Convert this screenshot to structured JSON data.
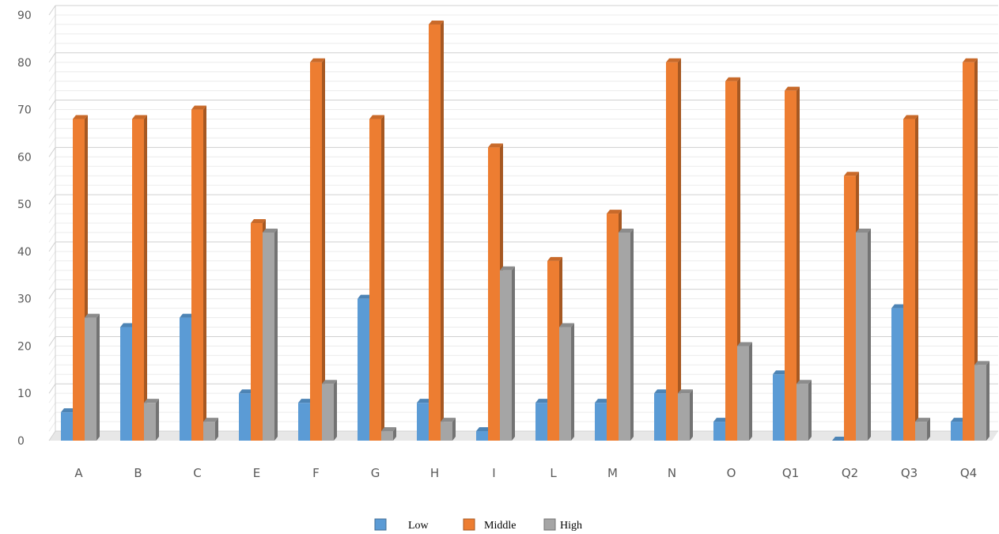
{
  "chart_data": {
    "type": "bar",
    "title": "",
    "xlabel": "",
    "ylabel": "",
    "ylim": [
      0,
      90
    ],
    "yticks": [
      0,
      10,
      20,
      30,
      40,
      50,
      60,
      70,
      80,
      90
    ],
    "grid": true,
    "legend_position": "bottom",
    "categories": [
      "A",
      "B",
      "C",
      "E",
      "F",
      "G",
      "H",
      "I",
      "L",
      "M",
      "N",
      "O",
      "Q1",
      "Q2",
      "Q3",
      "Q4"
    ],
    "series": [
      {
        "name": "Low",
        "color": "#5b9bd5",
        "values": [
          6,
          24,
          26,
          10,
          8,
          30,
          8,
          2,
          8,
          8,
          10,
          4,
          14,
          0,
          28,
          4
        ]
      },
      {
        "name": "Middle",
        "color": "#ed7d31",
        "values": [
          68,
          68,
          70,
          46,
          80,
          68,
          88,
          62,
          38,
          48,
          80,
          76,
          74,
          56,
          68,
          80
        ]
      },
      {
        "name": "High",
        "color": "#a5a5a5",
        "values": [
          26,
          8,
          4,
          44,
          12,
          2,
          4,
          36,
          24,
          44,
          10,
          20,
          12,
          44,
          4,
          16
        ]
      }
    ]
  }
}
